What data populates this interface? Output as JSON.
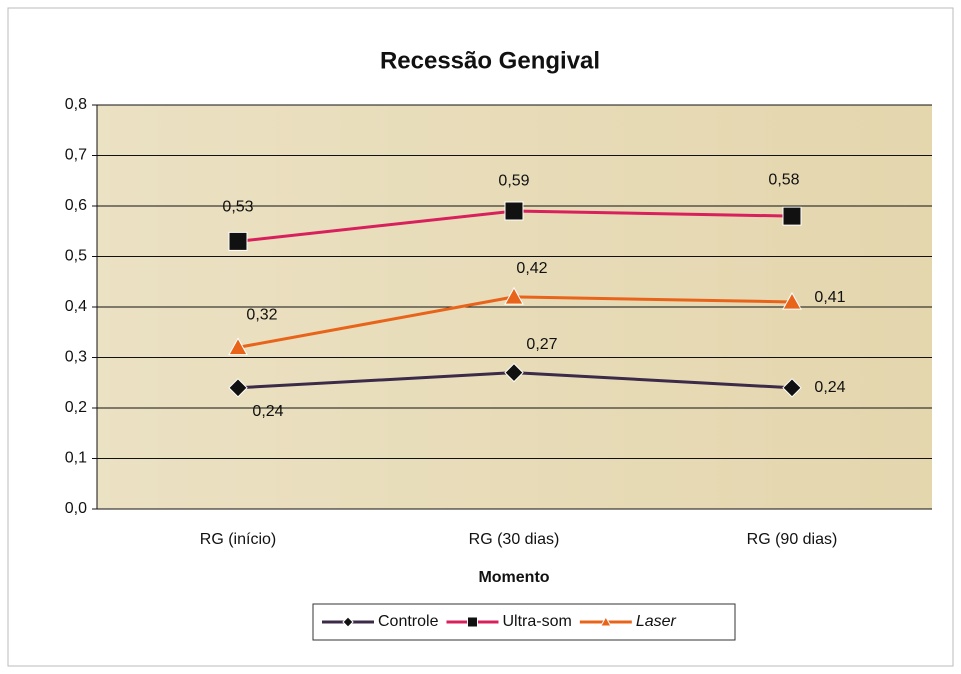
{
  "chart_data": {
    "type": "line",
    "title": "Recessão Gengival",
    "x_label": "Momento",
    "categories": [
      "RG (início)",
      "RG (30 dias)",
      "RG (90 dias)"
    ],
    "series": [
      {
        "name": "Controle",
        "color": "#3b2a48",
        "marker": "diamond",
        "values": [
          0.24,
          0.27,
          0.24
        ],
        "value_labels": [
          "0,24",
          "0,27",
          "0,24"
        ]
      },
      {
        "name": "Ultra-som",
        "color": "#d8205c",
        "marker": "square",
        "values": [
          0.53,
          0.59,
          0.58
        ],
        "value_labels": [
          "0,53",
          "0,59",
          "0,58"
        ]
      },
      {
        "name": "Laser",
        "color": "#e8641b",
        "marker": "triangle",
        "values": [
          0.32,
          0.42,
          0.41
        ],
        "value_labels": [
          "0,32",
          "0,42",
          "0,41"
        ]
      }
    ],
    "ylim": [
      0,
      0.8
    ],
    "yticks": [
      {
        "value": 0,
        "label": "0,0"
      },
      {
        "value": 0.1,
        "label": "0,1"
      },
      {
        "value": 0.2,
        "label": "0,2"
      },
      {
        "value": 0.3,
        "label": "0,3"
      },
      {
        "value": 0.4,
        "label": "0,4"
      },
      {
        "value": 0.5,
        "label": "0,5"
      },
      {
        "value": 0.6,
        "label": "0,6"
      },
      {
        "value": 0.7,
        "label": "0,7"
      },
      {
        "value": 0.8,
        "label": "0,8"
      }
    ],
    "grid": true,
    "legend": "bottom"
  }
}
